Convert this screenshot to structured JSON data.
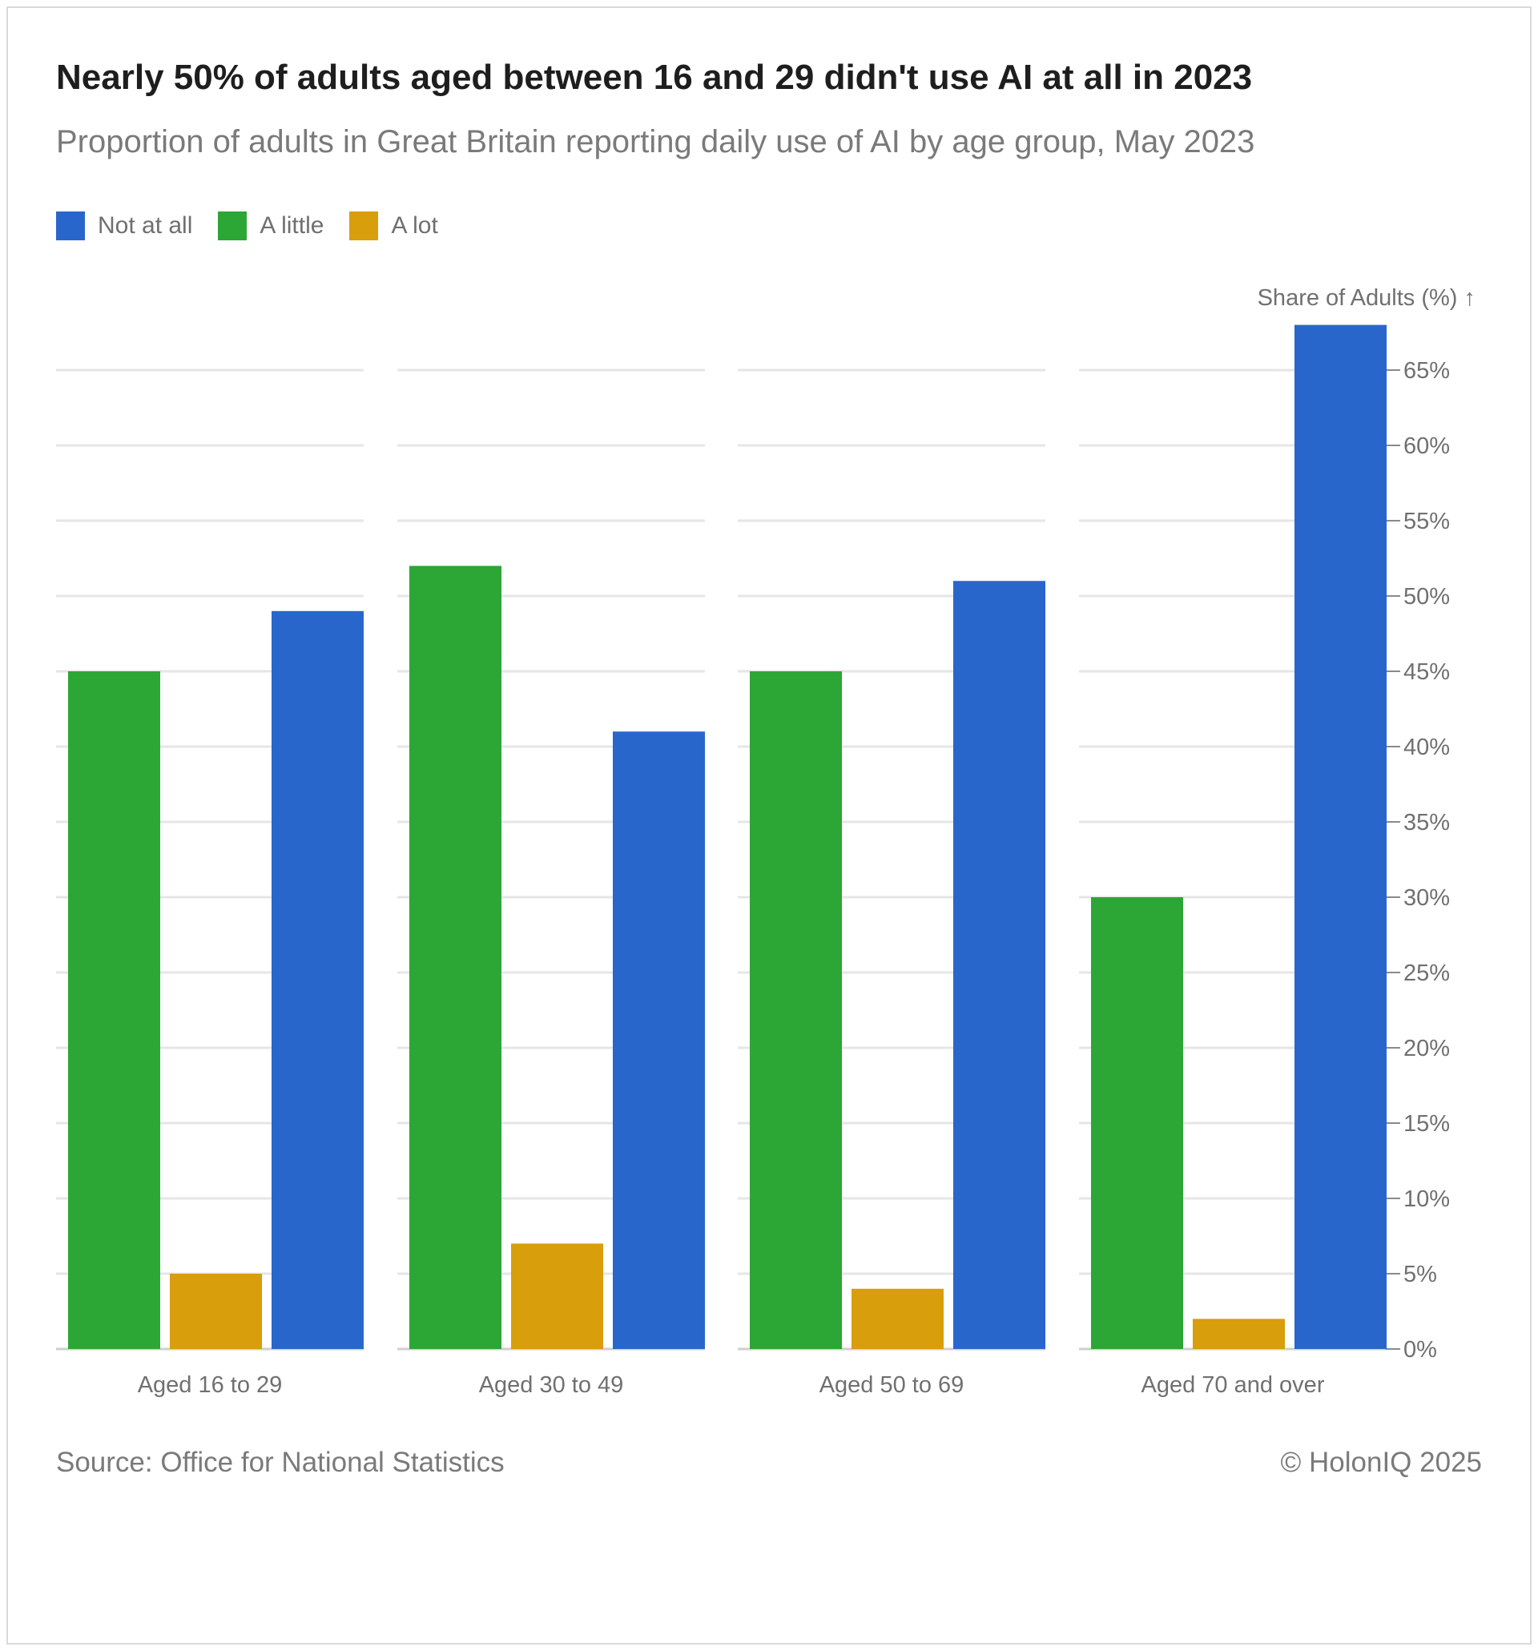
{
  "title": "Nearly 50% of adults aged between 16 and 29 didn't use AI at all in 2023",
  "subtitle": "Proportion of adults in Great Britain reporting daily use of AI by age group, May 2023",
  "legend": [
    {
      "label": "Not at all",
      "color": "#2966cc"
    },
    {
      "label": "A little",
      "color": "#2ca635"
    },
    {
      "label": "A lot",
      "color": "#d89e0b"
    }
  ],
  "footer": {
    "source": "Source: Office for National Statistics",
    "copyright": "© HolonIQ 2025"
  },
  "chart_data": {
    "type": "bar",
    "categories": [
      "Aged 16 to 29",
      "Aged 30 to 49",
      "Aged 50 to 69",
      "Aged 70 and over"
    ],
    "series": [
      {
        "name": "A little",
        "color": "#2ca635",
        "values": [
          45,
          52,
          45,
          30
        ]
      },
      {
        "name": "A lot",
        "color": "#d89e0b",
        "values": [
          5,
          7,
          4,
          2
        ]
      },
      {
        "name": "Not at all",
        "color": "#2966cc",
        "values": [
          49,
          41,
          51,
          68
        ]
      }
    ],
    "ylabel": "Share of Adults (%) ↑",
    "ylim": [
      0,
      65
    ],
    "yticks": [
      "0%",
      "5%",
      "10%",
      "15%",
      "20%",
      "25%",
      "30%",
      "35%",
      "40%",
      "45%",
      "50%",
      "55%",
      "60%",
      "65%"
    ],
    "ytick_values": [
      0,
      5,
      10,
      15,
      20,
      25,
      30,
      35,
      40,
      45,
      50,
      55,
      60,
      65
    ],
    "y_axis_position": "right",
    "grid": true,
    "legend_position": "top-left"
  }
}
